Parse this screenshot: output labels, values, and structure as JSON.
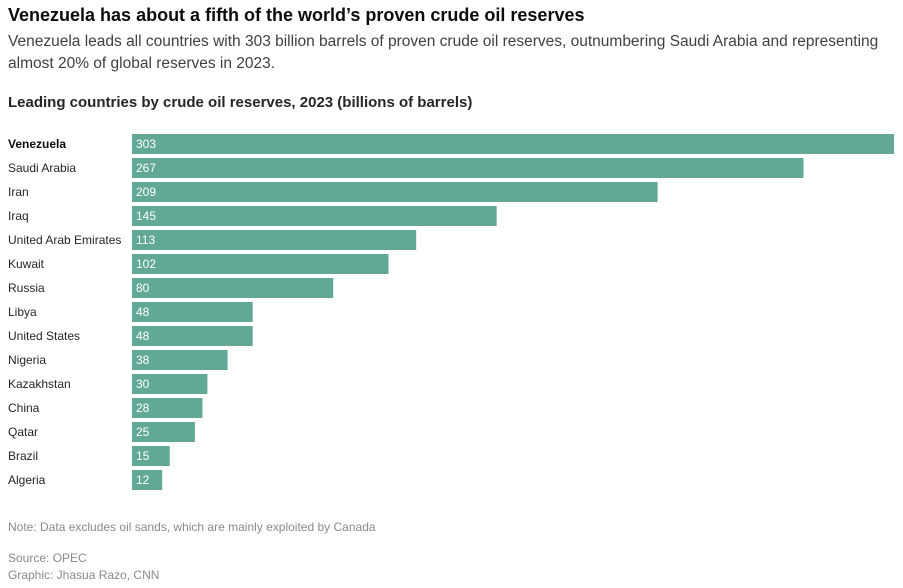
{
  "header": {
    "title": "Venezuela has about a fifth of the world’s proven crude oil reserves",
    "subtitle": "Venezuela leads all countries with 303 billion barrels of proven crude oil reserves, outnumbering Saudi Arabia and representing almost 20% of global reserves in 2023."
  },
  "chart_data": {
    "type": "bar",
    "orientation": "horizontal",
    "title": "Leading countries by crude oil reserves, 2023 (billions of barrels)",
    "categories": [
      "Venezuela",
      "Saudi Arabia",
      "Iran",
      "Iraq",
      "United Arab Emirates",
      "Kuwait",
      "Russia",
      "Libya",
      "United States",
      "Nigeria",
      "Kazakhstan",
      "China",
      "Qatar",
      "Brazil",
      "Algeria"
    ],
    "values": [
      303,
      267,
      209,
      145,
      113,
      102,
      80,
      48,
      48,
      38,
      30,
      28,
      25,
      15,
      12
    ],
    "highlight_category": "Venezuela",
    "bar_color": "#62a896",
    "xlim": [
      0,
      303
    ],
    "grid": false,
    "legend": "none"
  },
  "footer": {
    "note": "Note: Data excludes oil sands, which are mainly exploited by Canada",
    "source": "Source: OPEC",
    "credit": "Graphic: Jhasua Razo, CNN"
  }
}
